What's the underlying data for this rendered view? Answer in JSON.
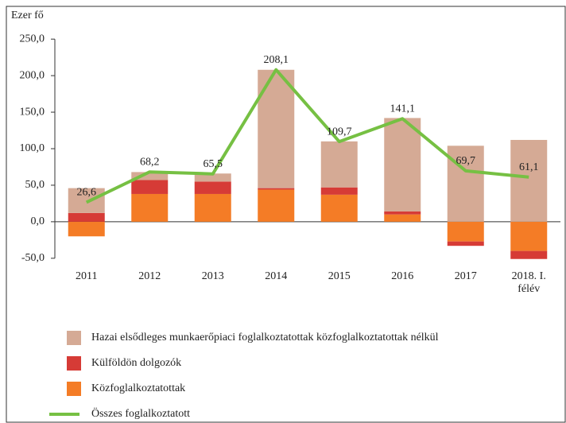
{
  "chart_data": {
    "type": "bar",
    "y_label": "Ezer fő",
    "categories": [
      "2011",
      "2012",
      "2013",
      "2014",
      "2015",
      "2016",
      "2017",
      "2018. I. félév"
    ],
    "series": [
      {
        "name": "Hazai elsődleges munkaerőpiaci foglalkoztatottak közfoglalkoztatottak nélkül",
        "color": "#d5aa95",
        "values": [
          34,
          11,
          11,
          162,
          63,
          128,
          104,
          112
        ]
      },
      {
        "name": "Külföldön dolgozók",
        "color": "#d63b36",
        "values": [
          12,
          19,
          17,
          2,
          10,
          4,
          -6,
          -11
        ]
      },
      {
        "name": "Közfoglalkoztatottak",
        "color": "#f47c26",
        "values": [
          -20,
          38,
          38,
          44,
          37,
          10,
          -27,
          -40
        ]
      },
      {
        "name": "Összes foglalkoztatott",
        "color": "#76c043",
        "type": "line",
        "values": [
          26.6,
          68.2,
          65.5,
          208.1,
          109.7,
          141.1,
          69.7,
          61.1
        ],
        "value_labels": [
          "26,6",
          "68,2",
          "65,5",
          "208,1",
          "109,7",
          "141,1",
          "69,7",
          "61,1"
        ]
      }
    ],
    "ylim": [
      -60,
      260
    ],
    "yticks": [
      {
        "value": -50,
        "label": "-50,0"
      },
      {
        "value": 0,
        "label": "0,0"
      },
      {
        "value": 50,
        "label": "50,0"
      },
      {
        "value": 100,
        "label": "100,0"
      },
      {
        "value": 150,
        "label": "150,0"
      },
      {
        "value": 200,
        "label": "200,0"
      },
      {
        "value": 250,
        "label": "250,0"
      }
    ],
    "grid": false
  }
}
